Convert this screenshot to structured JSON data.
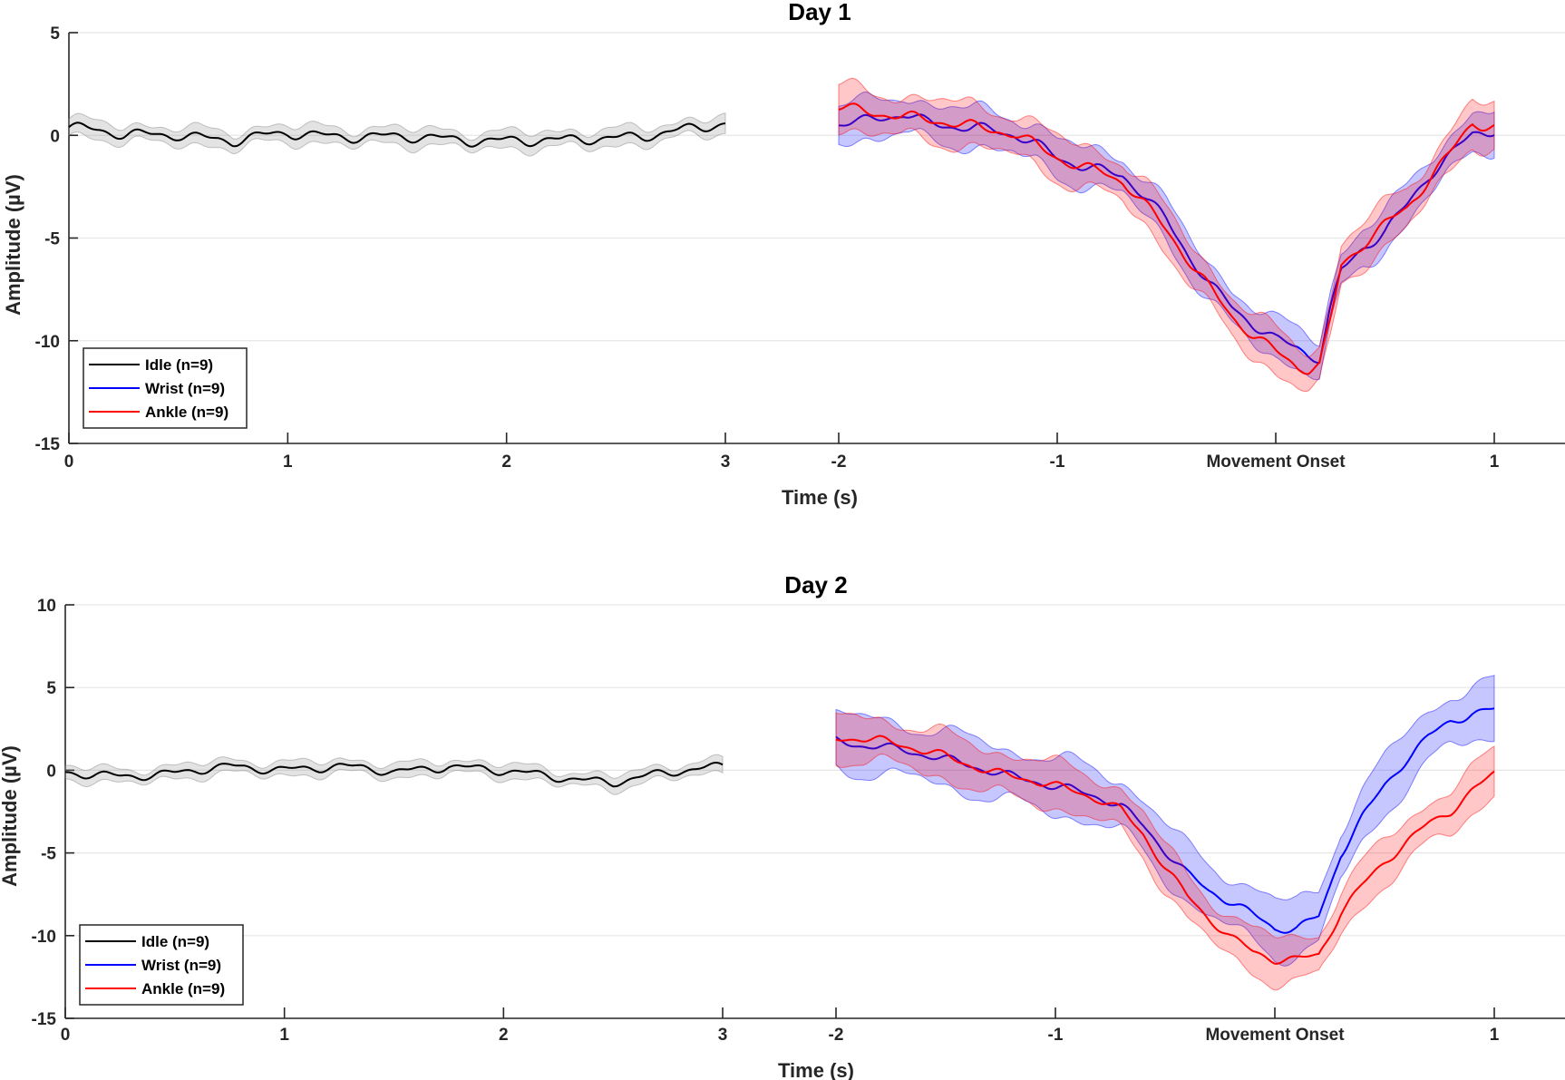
{
  "chart_data": [
    {
      "type": "line",
      "title": "Day 1",
      "xlabel": "Time (s)",
      "ylabel": "Amplitude (µV)",
      "ylim": [
        -15,
        5
      ],
      "yticks": [
        5,
        0,
        -5,
        -10,
        -15
      ],
      "grid": "horizontal",
      "legend_position": "bottom-left",
      "segments": [
        {
          "name": "idle",
          "xlim": [
            0,
            3
          ],
          "xtick_values": [
            0,
            1,
            2,
            3
          ],
          "xtick_labels": [
            "0",
            "1",
            "2",
            "3"
          ]
        },
        {
          "name": "movement",
          "xlim": [
            -2,
            1
          ],
          "xtick_values": [
            -2,
            -1,
            0,
            1
          ],
          "xtick_labels": [
            "-2",
            "-1",
            "Movement Onset",
            "1"
          ]
        }
      ],
      "series": [
        {
          "name": "Idle (n=9)",
          "color": "#000000",
          "band_color": "#808080",
          "segment": "idle",
          "x": [
            0,
            0.25,
            0.5,
            0.75,
            1.0,
            1.25,
            1.5,
            1.75,
            2.0,
            2.25,
            2.5,
            2.75,
            3.0
          ],
          "y": [
            0.4,
            0.0,
            0.1,
            -0.3,
            0.1,
            0.0,
            -0.1,
            -0.2,
            -0.2,
            -0.3,
            -0.1,
            0.2,
            0.5
          ],
          "band": 0.4
        },
        {
          "name": "Wrist (n=9)",
          "color": "#0000ff",
          "band_color": "#0000ff",
          "segment": "movement",
          "x": [
            -2.0,
            -1.9,
            -1.8,
            -1.7,
            -1.6,
            -1.5,
            -1.4,
            -1.3,
            -1.2,
            -1.1,
            -1.0,
            -0.9,
            -0.8,
            -0.7,
            -0.6,
            -0.5,
            -0.4,
            -0.3,
            -0.2,
            -0.1,
            0.0,
            0.1,
            0.15,
            0.2,
            0.25,
            0.3,
            0.4,
            0.5,
            0.6,
            0.7,
            0.8,
            0.9,
            1.0
          ],
          "y": [
            0.5,
            0.6,
            0.9,
            1.1,
            0.7,
            0.5,
            0.3,
            0.2,
            0.0,
            -0.4,
            -1.0,
            -1.4,
            -1.7,
            -2.0,
            -3.0,
            -4.2,
            -5.8,
            -7.2,
            -8.3,
            -9.2,
            -10.0,
            -10.4,
            -10.7,
            -10.9,
            -8.5,
            -6.6,
            -5.4,
            -4.6,
            -3.4,
            -2.0,
            -1.0,
            0.0,
            0.3
          ],
          "band": 0.9
        },
        {
          "name": "Ankle (n=9)",
          "color": "#ff0000",
          "band_color": "#ff0000",
          "segment": "movement",
          "x": [
            -2.0,
            -1.9,
            -1.8,
            -1.7,
            -1.6,
            -1.5,
            -1.4,
            -1.3,
            -1.2,
            -1.1,
            -1.0,
            -0.9,
            -0.8,
            -0.7,
            -0.6,
            -0.5,
            -0.4,
            -0.3,
            -0.2,
            -0.1,
            0.0,
            0.1,
            0.15,
            0.2,
            0.25,
            0.3,
            0.4,
            0.5,
            0.6,
            0.7,
            0.8,
            0.9,
            1.0
          ],
          "y": [
            1.3,
            1.2,
            1.1,
            1.0,
            0.8,
            0.6,
            0.4,
            0.2,
            0.1,
            -0.4,
            -1.0,
            -1.5,
            -1.8,
            -2.3,
            -3.4,
            -4.6,
            -6.0,
            -7.4,
            -8.8,
            -9.8,
            -10.6,
            -11.3,
            -11.4,
            -11.2,
            -9.0,
            -6.3,
            -5.2,
            -4.3,
            -3.6,
            -2.2,
            -0.9,
            0.6,
            0.5
          ],
          "band": 1.0
        }
      ]
    },
    {
      "type": "line",
      "title": "Day 2",
      "xlabel": "Time (s)",
      "ylabel": "Amplitude (µV)",
      "ylim": [
        -15,
        10
      ],
      "yticks": [
        10,
        5,
        0,
        -5,
        -10,
        -15
      ],
      "grid": "horizontal",
      "legend_position": "bottom-left",
      "segments": [
        {
          "name": "idle",
          "xlim": [
            0,
            3
          ],
          "xtick_values": [
            0,
            1,
            2,
            3
          ],
          "xtick_labels": [
            "0",
            "1",
            "2",
            "3"
          ]
        },
        {
          "name": "movement",
          "xlim": [
            -2,
            1
          ],
          "xtick_values": [
            -2,
            -1,
            0,
            1
          ],
          "xtick_labels": [
            "-2",
            "-1",
            "Movement Onset",
            "1"
          ]
        }
      ],
      "series": [
        {
          "name": "Idle (n=9)",
          "color": "#000000",
          "band_color": "#808080",
          "segment": "idle",
          "x": [
            0,
            0.25,
            0.5,
            0.75,
            1.0,
            1.25,
            1.5,
            1.75,
            2.0,
            2.25,
            2.5,
            2.75,
            3.0
          ],
          "y": [
            -0.2,
            -0.3,
            -0.2,
            0.2,
            0.1,
            0.2,
            -0.1,
            0.3,
            -0.1,
            -0.4,
            -0.7,
            -0.2,
            0.3
          ],
          "band": 0.4
        },
        {
          "name": "Wrist (n=9)",
          "color": "#0000ff",
          "band_color": "#0000ff",
          "segment": "movement",
          "x": [
            -2.0,
            -1.9,
            -1.8,
            -1.7,
            -1.6,
            -1.5,
            -1.4,
            -1.3,
            -1.2,
            -1.1,
            -1.0,
            -0.9,
            -0.8,
            -0.7,
            -0.6,
            -0.5,
            -0.4,
            -0.3,
            -0.2,
            -0.1,
            0.0,
            0.1,
            0.2,
            0.25,
            0.3,
            0.4,
            0.5,
            0.6,
            0.7,
            0.8,
            0.9,
            1.0
          ],
          "y": [
            1.8,
            1.6,
            1.5,
            1.2,
            0.9,
            0.6,
            0.3,
            0.0,
            -0.3,
            -0.6,
            -1.0,
            -1.3,
            -1.7,
            -2.2,
            -3.3,
            -4.8,
            -6.2,
            -7.3,
            -8.0,
            -8.8,
            -9.6,
            -9.5,
            -8.8,
            -7.0,
            -5.0,
            -2.8,
            -1.0,
            0.6,
            2.0,
            3.0,
            3.5,
            3.7
          ],
          "band": 1.6
        },
        {
          "name": "Ankle (n=9)",
          "color": "#ff0000",
          "band_color": "#ff0000",
          "segment": "movement",
          "x": [
            -2.0,
            -1.9,
            -1.8,
            -1.7,
            -1.6,
            -1.5,
            -1.4,
            -1.3,
            -1.2,
            -1.1,
            -1.0,
            -0.9,
            -0.8,
            -0.7,
            -0.6,
            -0.5,
            -0.4,
            -0.3,
            -0.2,
            -0.1,
            0.0,
            0.1,
            0.2,
            0.3,
            0.4,
            0.5,
            0.6,
            0.7,
            0.8,
            0.9,
            1.0
          ],
          "y": [
            2.0,
            2.0,
            1.8,
            1.5,
            1.1,
            0.8,
            0.4,
            0.0,
            -0.3,
            -0.6,
            -1.0,
            -1.4,
            -1.8,
            -2.4,
            -3.8,
            -5.8,
            -7.6,
            -9.0,
            -10.2,
            -11.0,
            -11.4,
            -11.4,
            -11.1,
            -8.6,
            -7.0,
            -5.6,
            -4.4,
            -3.2,
            -2.4,
            -1.2,
            -0.2
          ],
          "band": 1.3
        }
      ]
    }
  ]
}
